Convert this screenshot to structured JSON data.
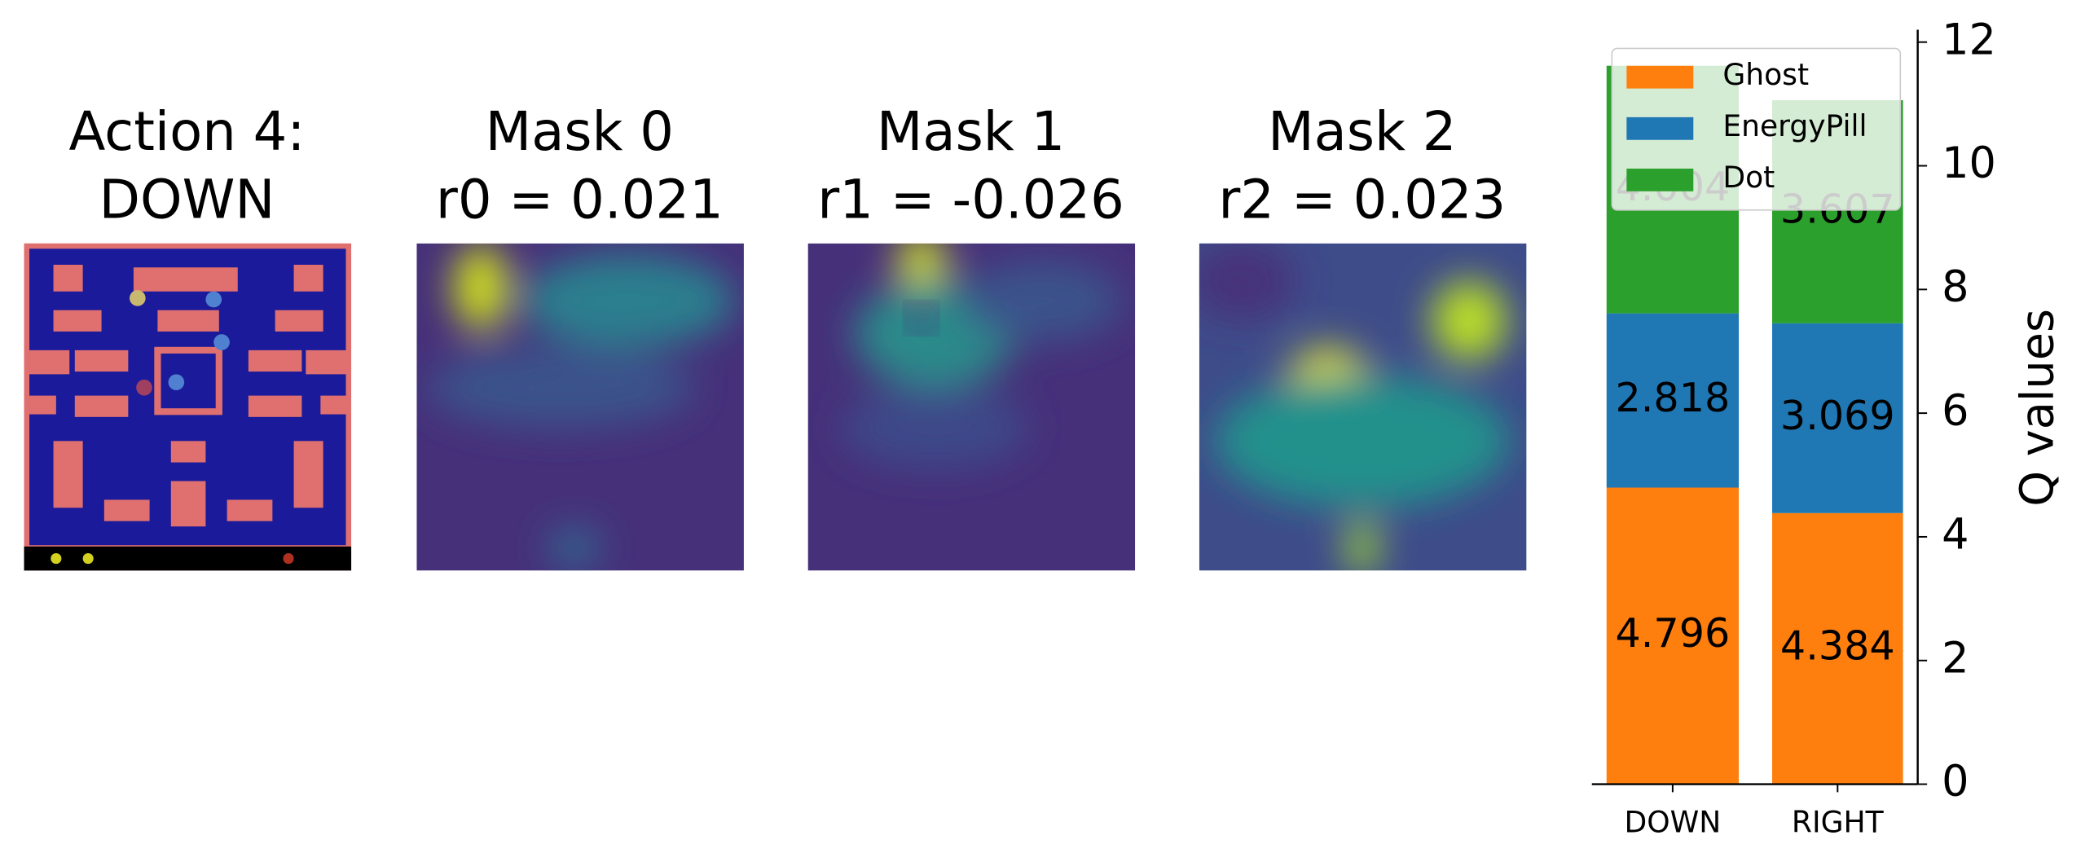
{
  "panels": [
    {
      "title": [
        "Action 4:",
        "DOWN"
      ]
    },
    {
      "title": [
        "Mask 0",
        "r0 = 0.021"
      ]
    },
    {
      "title": [
        "Mask 1",
        "r1 = -0.026"
      ]
    },
    {
      "title": [
        "Mask 2",
        "r2 = 0.023"
      ]
    }
  ],
  "chart_data": {
    "type": "stacked-bar",
    "categories": [
      "DOWN",
      "RIGHT"
    ],
    "series": [
      {
        "name": "Ghost",
        "color": "#ff7f0e",
        "values": [
          4.796,
          4.384
        ]
      },
      {
        "name": "EnergyPill",
        "color": "#1f77b4",
        "values": [
          2.818,
          3.069
        ]
      },
      {
        "name": "Dot",
        "color": "#2ca02c",
        "values": [
          4.004,
          3.607
        ]
      }
    ],
    "y_label": "Q values",
    "ylim": [
      0,
      12.2
    ],
    "yticks": [
      0,
      2,
      4,
      6,
      8,
      10,
      12
    ],
    "y_axis_side": "right",
    "legend": "upper-left"
  }
}
